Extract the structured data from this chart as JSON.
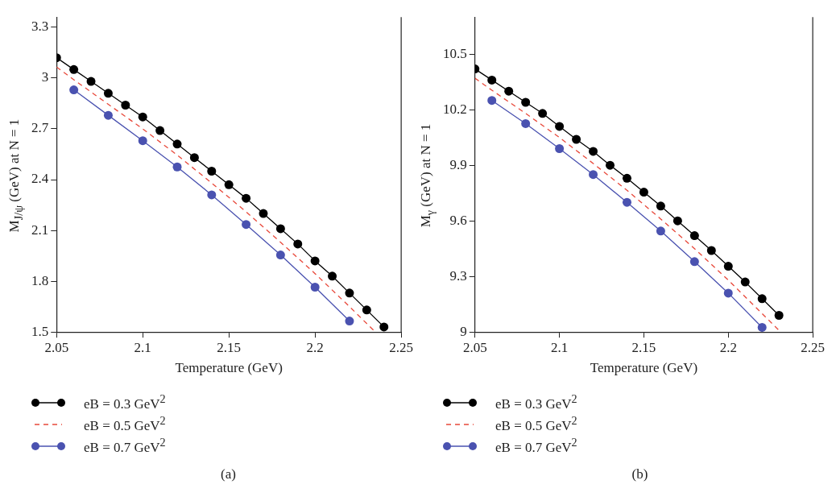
{
  "chart_data": [
    {
      "type": "line",
      "xlabel": "Temperature (GeV)",
      "ylabel": "M$_{J/ψ}$ (GeV) at N = 1",
      "xlim": [
        2.05,
        2.25
      ],
      "xticks": [
        2.05,
        2.1,
        2.15,
        2.2,
        2.25
      ],
      "ylim": [
        1.5,
        3.36
      ],
      "yticks": [
        1.5,
        1.8,
        2.1,
        2.4,
        2.7,
        3,
        3.3
      ],
      "grid": false,
      "legend": "bottom",
      "marker": "circle",
      "line_style": "solid",
      "annotations": [
        "(a)"
      ],
      "series": [
        {
          "name": "eB = 0.3 GeV$^{2}$",
          "color": "#000000",
          "x": [
            2.05,
            2.06,
            2.07,
            2.08,
            2.09,
            2.1,
            2.11,
            2.12,
            2.13,
            2.14,
            2.15,
            2.16,
            2.17,
            2.18,
            2.19,
            2.2,
            2.21,
            2.22,
            2.23,
            2.24
          ],
          "values": [
            3.12,
            3.05,
            2.98,
            2.91,
            2.84,
            2.77,
            2.69,
            2.61,
            2.53,
            2.45,
            2.37,
            2.29,
            2.2,
            2.11,
            2.02,
            1.92,
            1.83,
            1.73,
            1.63,
            1.53
          ]
        },
        {
          "name": "eB = 0.5 GeV$^{2}$",
          "color": "#e8483a",
          "marker": "none",
          "line_style": "dashed",
          "x": [
            2.05,
            2.06,
            2.08,
            2.1,
            2.12,
            2.14,
            2.16,
            2.18,
            2.2,
            2.22,
            2.235
          ],
          "values": [
            3.065,
            2.99,
            2.845,
            2.7,
            2.545,
            2.38,
            2.21,
            2.03,
            1.845,
            1.65,
            1.5
          ]
        },
        {
          "name": "eB = 0.7 GeV$^{2}$",
          "color": "#4a52b0",
          "x": [
            2.06,
            2.08,
            2.1,
            2.12,
            2.14,
            2.16,
            2.18,
            2.2,
            2.22
          ],
          "values": [
            2.93,
            2.78,
            2.63,
            2.475,
            2.31,
            2.135,
            1.955,
            1.765,
            1.565
          ]
        }
      ]
    },
    {
      "type": "line",
      "xlabel": "Temperature (GeV)",
      "ylabel": "M$_{γ}$ (GeV) at N = 1",
      "xlim": [
        2.05,
        2.25
      ],
      "xticks": [
        2.05,
        2.1,
        2.15,
        2.2,
        2.25
      ],
      "ylim": [
        9,
        10.7
      ],
      "yticks": [
        9,
        9.3,
        9.6,
        9.9,
        10.2,
        10.5
      ],
      "grid": false,
      "legend": "bottom",
      "marker": "circle",
      "line_style": "solid",
      "annotations": [
        "(b)"
      ],
      "series": [
        {
          "name": "eB = 0.3 GeV$^{2}$",
          "color": "#000000",
          "x": [
            2.05,
            2.06,
            2.07,
            2.08,
            2.09,
            2.1,
            2.11,
            2.12,
            2.13,
            2.14,
            2.15,
            2.16,
            2.17,
            2.18,
            2.19,
            2.2,
            2.21,
            2.22,
            2.23
          ],
          "values": [
            10.42,
            10.36,
            10.3,
            10.24,
            10.18,
            10.11,
            10.04,
            9.975,
            9.9,
            9.83,
            9.755,
            9.68,
            9.6,
            9.52,
            9.44,
            9.355,
            9.27,
            9.18,
            9.09
          ]
        },
        {
          "name": "eB = 0.5 GeV$^{2}$",
          "color": "#e8483a",
          "marker": "none",
          "line_style": "dashed",
          "x": [
            2.05,
            2.06,
            2.08,
            2.1,
            2.12,
            2.14,
            2.16,
            2.18,
            2.2,
            2.22,
            2.231
          ],
          "values": [
            10.37,
            10.305,
            10.18,
            10.05,
            9.91,
            9.765,
            9.61,
            9.45,
            9.28,
            9.1,
            9.0
          ]
        },
        {
          "name": "eB = 0.7 GeV$^{2}$",
          "color": "#4a52b0",
          "x": [
            2.06,
            2.08,
            2.1,
            2.12,
            2.14,
            2.16,
            2.18,
            2.2,
            2.22
          ],
          "values": [
            10.25,
            10.125,
            9.99,
            9.85,
            9.7,
            9.545,
            9.38,
            9.21,
            9.025
          ]
        }
      ]
    }
  ]
}
